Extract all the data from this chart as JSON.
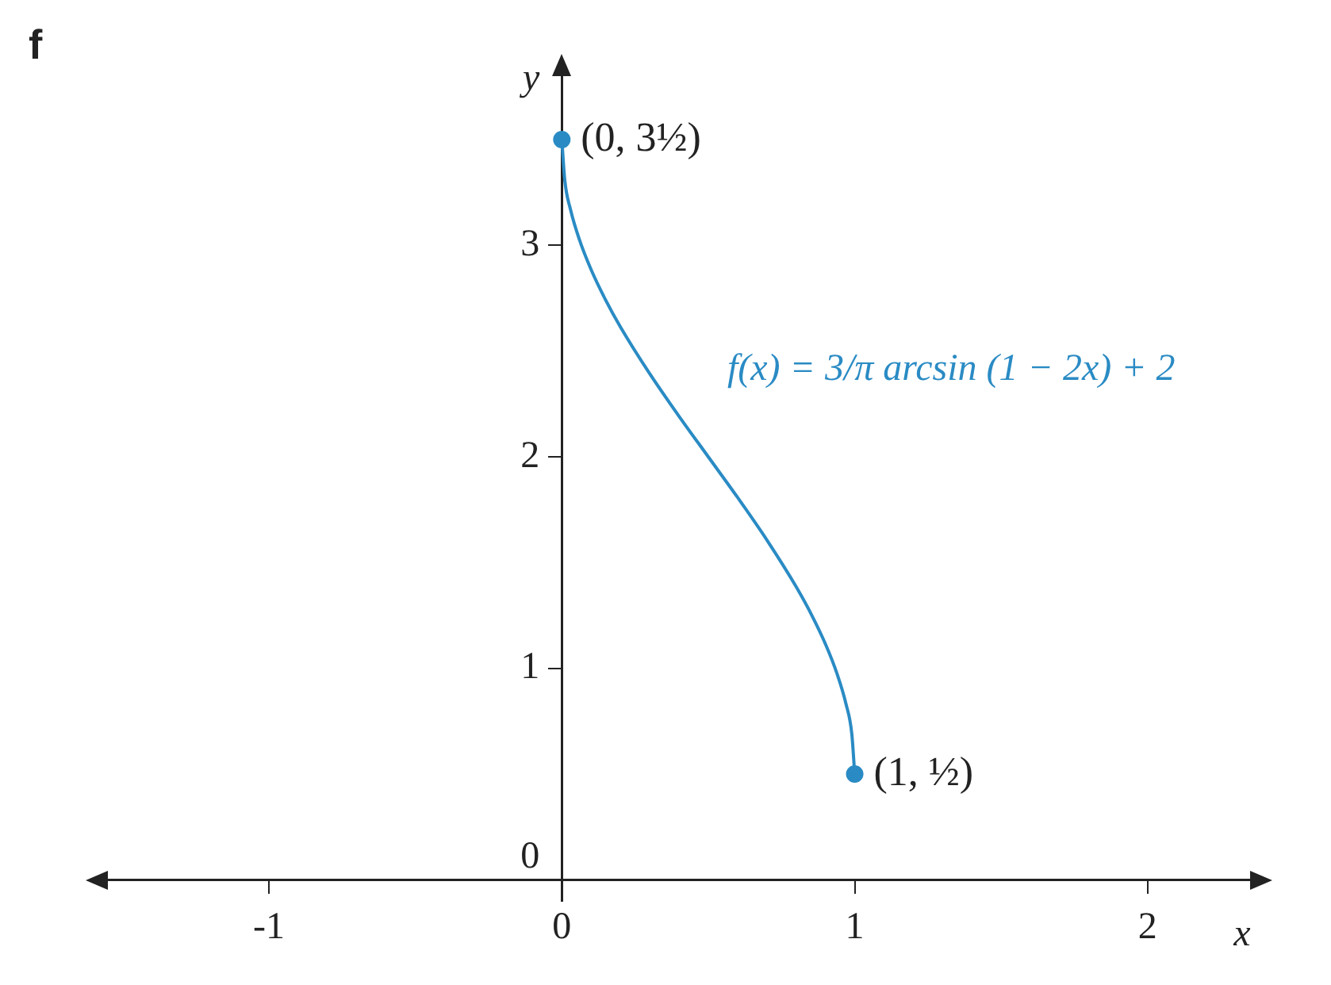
{
  "chart_data": {
    "type": "line",
    "title": "f",
    "xlabel": "x",
    "ylabel": "y",
    "xlim": [
      -1.55,
      2.35
    ],
    "ylim": [
      -0.1,
      3.8
    ],
    "xticks": [
      -1,
      0,
      1,
      2
    ],
    "yticks": [
      0,
      1,
      2,
      3
    ],
    "grid": false,
    "legend": false,
    "series": [
      {
        "name": "f(x) = 3/π arcsin (1 − 2x) + 2",
        "color": "#2a8bc4",
        "type": "line",
        "marker": "none",
        "x": [
          0,
          0.01,
          0.03,
          0.06,
          0.1,
          0.15,
          0.2,
          0.3,
          0.4,
          0.5,
          0.6,
          0.7,
          0.8,
          0.85,
          0.9,
          0.94,
          0.97,
          0.99,
          1
        ],
        "values": [
          3.5,
          3.309,
          3.167,
          3.027,
          2.885,
          2.74,
          2.614,
          2.393,
          2.192,
          2,
          1.808,
          1.607,
          1.386,
          1.26,
          1.115,
          0.973,
          0.833,
          0.691,
          0.5
        ]
      },
      {
        "color": "#2a8bc4",
        "type": "scatter",
        "marker": "circle",
        "x": [
          0,
          1
        ],
        "values": [
          3.5,
          0.5
        ]
      }
    ],
    "annotations": [
      {
        "text": "(0, 3½)",
        "x": 0,
        "y": 3.5
      },
      {
        "text": "(1, ½)",
        "x": 1,
        "y": 0.5
      }
    ]
  }
}
